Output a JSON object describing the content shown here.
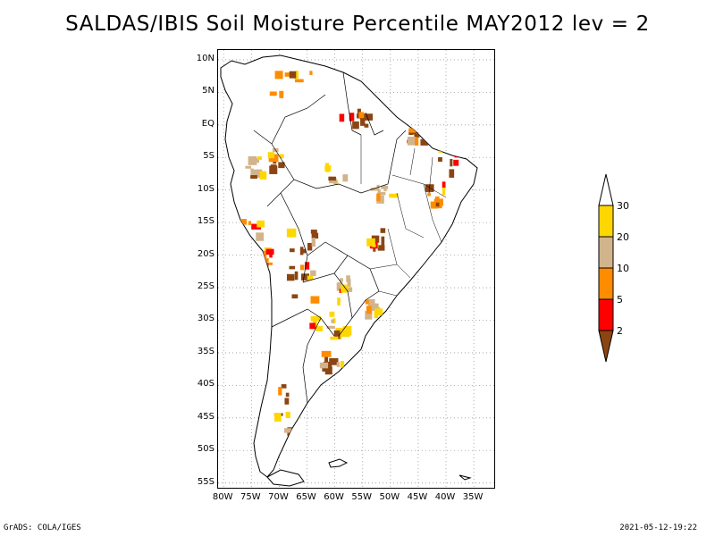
{
  "title": "SALDAS/IBIS Soil Moisture Percentile MAY2012 lev = 2",
  "map": {
    "lat_labels": [
      "10N",
      "5N",
      "EQ",
      "5S",
      "10S",
      "15S",
      "20S",
      "25S",
      "30S",
      "35S",
      "40S",
      "45S",
      "50S",
      "55S"
    ],
    "lat_values": [
      10,
      5,
      0,
      -5,
      -10,
      -15,
      -20,
      -25,
      -30,
      -35,
      -40,
      -45,
      -50,
      -55
    ],
    "lon_labels": [
      "80W",
      "75W",
      "70W",
      "65W",
      "60W",
      "55W",
      "50W",
      "45W",
      "40W",
      "35W"
    ],
    "lon_values": [
      -80,
      -75,
      -70,
      -65,
      -60,
      -55,
      -50,
      -45,
      -40,
      -35
    ],
    "lon_range": [
      -81,
      -31
    ],
    "lat_range": [
      -56,
      11.5
    ]
  },
  "colorbar": {
    "labels": [
      "30",
      "20",
      "10",
      "5",
      "2"
    ],
    "label_values": [
      30,
      20,
      10,
      5,
      2
    ],
    "colors": {
      "above_30": "#ffffff",
      "20_30": "#ffd700",
      "10_20": "#d2b48c",
      "5_10": "#ff8c00",
      "2_5": "#ff0000",
      "below_2": "#8b4513"
    }
  },
  "footer": {
    "left": "GrADS: COLA/IGES",
    "right": "2021-05-12-19:22"
  }
}
